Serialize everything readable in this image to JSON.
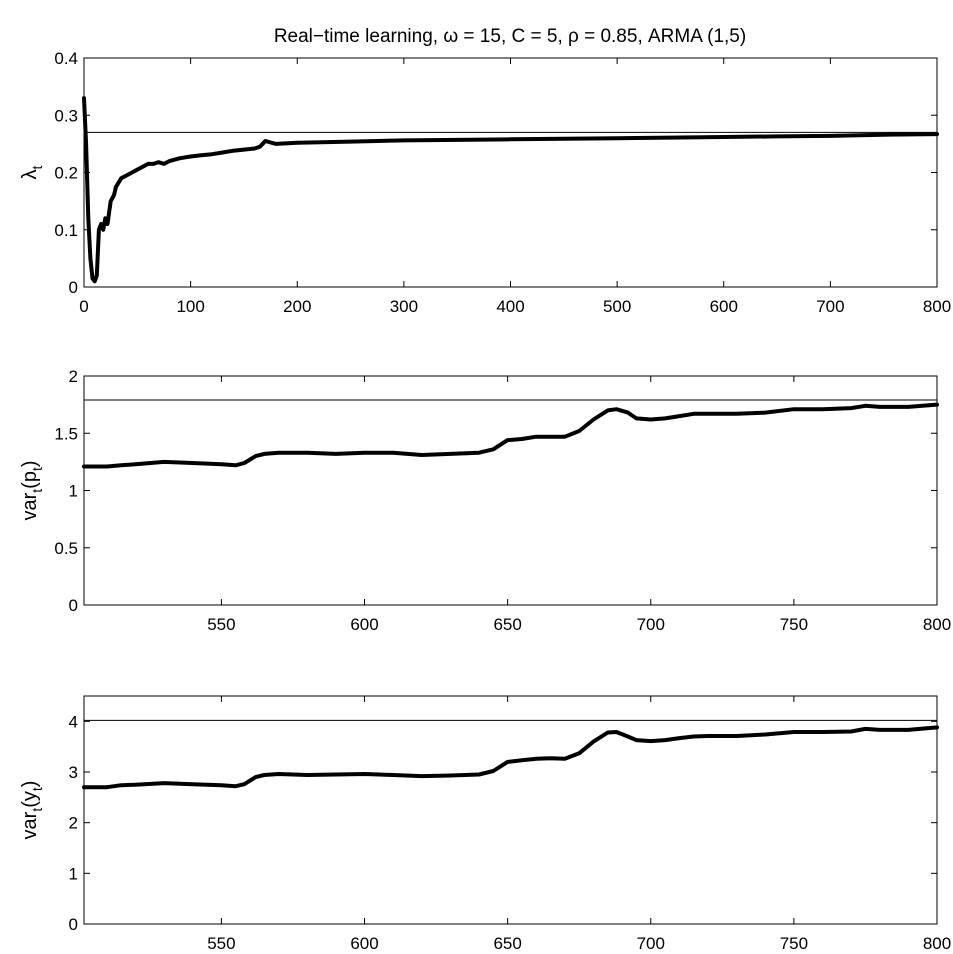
{
  "title": "Real−time learning, ω = 15, C = 5, ρ = 0.85, ARMA (1,5)",
  "chart_data": [
    {
      "type": "line",
      "ylabel_main": "λ",
      "ylabel_sub": "t",
      "xlim": [
        0,
        800
      ],
      "ylim": [
        0,
        0.4
      ],
      "xticks": [
        0,
        100,
        200,
        300,
        400,
        500,
        600,
        700,
        800
      ],
      "xtick_labels": [
        "0",
        "100",
        "200",
        "300",
        "400",
        "500",
        "600",
        "700",
        "800"
      ],
      "yticks": [
        0,
        0.1,
        0.2,
        0.3,
        0.4
      ],
      "ytick_labels": [
        "0",
        "0.1",
        "0.2",
        "0.3",
        "0.4"
      ],
      "reference_line": 0.27,
      "series": [
        {
          "x": [
            0,
            2,
            4,
            6,
            8,
            10,
            12,
            14,
            16,
            18,
            20,
            22,
            25,
            28,
            30,
            35,
            40,
            45,
            50,
            55,
            60,
            65,
            70,
            75,
            80,
            90,
            100,
            110,
            120,
            130,
            140,
            150,
            160,
            165,
            170,
            180,
            200,
            250,
            300,
            350,
            400,
            450,
            500,
            550,
            600,
            650,
            700,
            750,
            800
          ],
          "y": [
            0.33,
            0.25,
            0.12,
            0.05,
            0.015,
            0.01,
            0.02,
            0.1,
            0.11,
            0.1,
            0.12,
            0.11,
            0.15,
            0.16,
            0.175,
            0.19,
            0.195,
            0.2,
            0.205,
            0.21,
            0.215,
            0.215,
            0.218,
            0.215,
            0.22,
            0.225,
            0.228,
            0.23,
            0.232,
            0.235,
            0.238,
            0.24,
            0.242,
            0.245,
            0.255,
            0.25,
            0.252,
            0.254,
            0.256,
            0.257,
            0.258,
            0.259,
            0.26,
            0.261,
            0.262,
            0.263,
            0.264,
            0.266,
            0.267
          ]
        }
      ]
    },
    {
      "type": "line",
      "ylabel_main": "var",
      "ylabel_sub": "t",
      "ylabel_rest": "(p",
      "ylabel_sub2": "t",
      "ylabel_end": ")",
      "xlim": [
        502,
        800
      ],
      "ylim": [
        0,
        2
      ],
      "xticks": [
        550,
        600,
        650,
        700,
        750,
        800
      ],
      "xtick_labels": [
        "550",
        "600",
        "650",
        "700",
        "750",
        "800"
      ],
      "yticks": [
        0,
        0.5,
        1,
        1.5,
        2
      ],
      "ytick_labels": [
        "0",
        "0.5",
        "1",
        "1.5",
        "2"
      ],
      "reference_line": 1.79,
      "series": [
        {
          "x": [
            502,
            510,
            515,
            520,
            530,
            540,
            550,
            555,
            558,
            562,
            565,
            570,
            580,
            590,
            600,
            610,
            620,
            630,
            640,
            645,
            650,
            655,
            660,
            665,
            670,
            675,
            680,
            685,
            688,
            692,
            695,
            700,
            705,
            710,
            715,
            720,
            730,
            740,
            750,
            760,
            770,
            775,
            780,
            790,
            800
          ],
          "y": [
            1.21,
            1.21,
            1.22,
            1.23,
            1.25,
            1.24,
            1.23,
            1.22,
            1.24,
            1.3,
            1.32,
            1.33,
            1.33,
            1.32,
            1.33,
            1.33,
            1.31,
            1.32,
            1.33,
            1.36,
            1.44,
            1.45,
            1.47,
            1.47,
            1.47,
            1.52,
            1.62,
            1.7,
            1.71,
            1.68,
            1.63,
            1.62,
            1.63,
            1.65,
            1.67,
            1.67,
            1.67,
            1.68,
            1.71,
            1.71,
            1.72,
            1.74,
            1.73,
            1.73,
            1.75
          ]
        }
      ]
    },
    {
      "type": "line",
      "ylabel_main": "var",
      "ylabel_sub": "t",
      "ylabel_rest": "(y",
      "ylabel_sub2": "t",
      "ylabel_end": ")",
      "xlim": [
        502,
        800
      ],
      "ylim": [
        0,
        4.5
      ],
      "xticks": [
        550,
        600,
        650,
        700,
        750,
        800
      ],
      "xtick_labels": [
        "550",
        "600",
        "650",
        "700",
        "750",
        "800"
      ],
      "yticks": [
        0,
        1,
        2,
        3,
        4
      ],
      "ytick_labels": [
        "0",
        "1",
        "2",
        "3",
        "4"
      ],
      "reference_line": 4.02,
      "series": [
        {
          "x": [
            502,
            510,
            515,
            520,
            530,
            540,
            550,
            555,
            558,
            562,
            565,
            570,
            580,
            590,
            600,
            610,
            620,
            630,
            640,
            645,
            650,
            655,
            660,
            665,
            670,
            675,
            680,
            685,
            688,
            692,
            695,
            700,
            705,
            710,
            715,
            720,
            730,
            740,
            750,
            760,
            770,
            775,
            780,
            790,
            800
          ],
          "y": [
            2.7,
            2.7,
            2.74,
            2.75,
            2.78,
            2.76,
            2.74,
            2.72,
            2.76,
            2.9,
            2.94,
            2.96,
            2.94,
            2.95,
            2.96,
            2.94,
            2.92,
            2.93,
            2.95,
            3.02,
            3.2,
            3.23,
            3.26,
            3.27,
            3.26,
            3.37,
            3.6,
            3.78,
            3.79,
            3.7,
            3.63,
            3.61,
            3.63,
            3.67,
            3.7,
            3.71,
            3.71,
            3.74,
            3.79,
            3.79,
            3.8,
            3.85,
            3.83,
            3.83,
            3.88
          ]
        }
      ]
    }
  ]
}
